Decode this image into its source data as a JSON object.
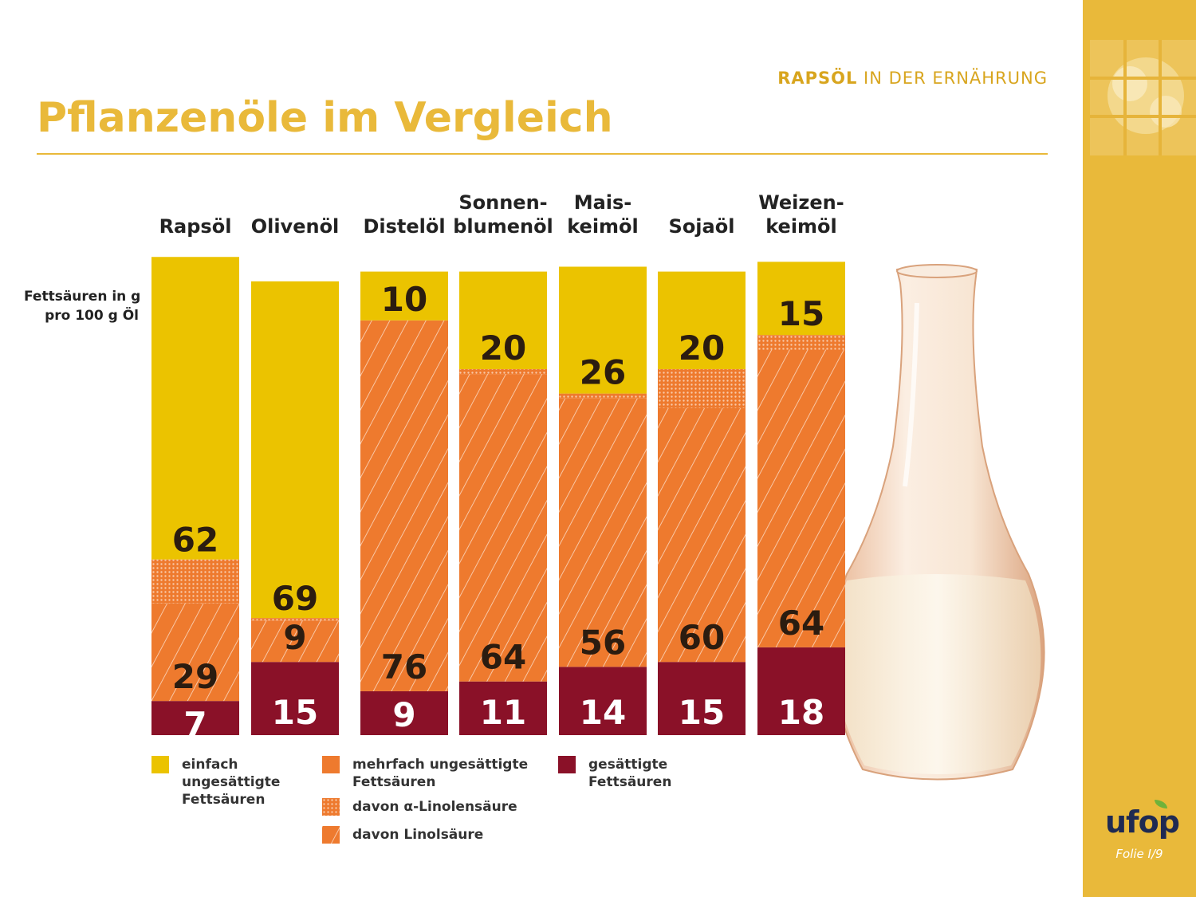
{
  "header": {
    "kicker_bold": "RAPSÖL",
    "kicker_rest": "IN DER ERNÄHRUNG",
    "title": "Pflanzenöle im Vergleich"
  },
  "footer": {
    "logo": "ufop",
    "folio": "Folie I/9"
  },
  "colors": {
    "mono": "#ebc300",
    "poly": "#ee7a2e",
    "saturated": "#8a1128",
    "brand": "#e9b93a"
  },
  "chart_data": {
    "type": "bar",
    "stacked": true,
    "ylabel_lines": [
      "Fettsäuren in g",
      "pro 100 g Öl"
    ],
    "categories": [
      {
        "line1": "",
        "line2": "Rapsöl"
      },
      {
        "line1": "",
        "line2": "Olivenöl"
      },
      {
        "line1": "",
        "line2": "Distelöl"
      },
      {
        "line1": "Sonnen-",
        "line2": "blumenöl"
      },
      {
        "line1": "Mais-",
        "line2": "keimöl"
      },
      {
        "line1": "",
        "line2": "Sojaöl"
      },
      {
        "line1": "Weizen-",
        "line2": "keimöl"
      }
    ],
    "series": [
      {
        "key": "saturated",
        "values": [
          7,
          15,
          9,
          11,
          14,
          15,
          18
        ]
      },
      {
        "key": "linoleic",
        "values": [
          20,
          8.5,
          76,
          63,
          55,
          52,
          61
        ]
      },
      {
        "key": "alpha_linolenic",
        "values": [
          9,
          0.5,
          0,
          1,
          1,
          8,
          3
        ]
      },
      {
        "key": "mono",
        "values": [
          62,
          69,
          10,
          20,
          26,
          20,
          15
        ]
      }
    ],
    "value_labels": [
      {
        "mono": "62",
        "poly": "29",
        "saturated": "7"
      },
      {
        "mono": "69",
        "poly": "9",
        "saturated": "15"
      },
      {
        "mono": "10",
        "poly": "76",
        "saturated": "9"
      },
      {
        "mono": "20",
        "poly": "64",
        "saturated": "11"
      },
      {
        "mono": "26",
        "poly": "56",
        "saturated": "14"
      },
      {
        "mono": "20",
        "poly": "60",
        "saturated": "15"
      },
      {
        "mono": "15",
        "poly": "64",
        "saturated": "18"
      }
    ],
    "legend": {
      "mono": "einfach ungesättigte Fettsäuren",
      "poly": "mehrfach ungesättigte Fettsäuren",
      "alpha_linolenic": "davon α-Linolensäure",
      "linoleic": "davon Linolsäure",
      "saturated": "gesättigte Fettsäuren"
    }
  }
}
